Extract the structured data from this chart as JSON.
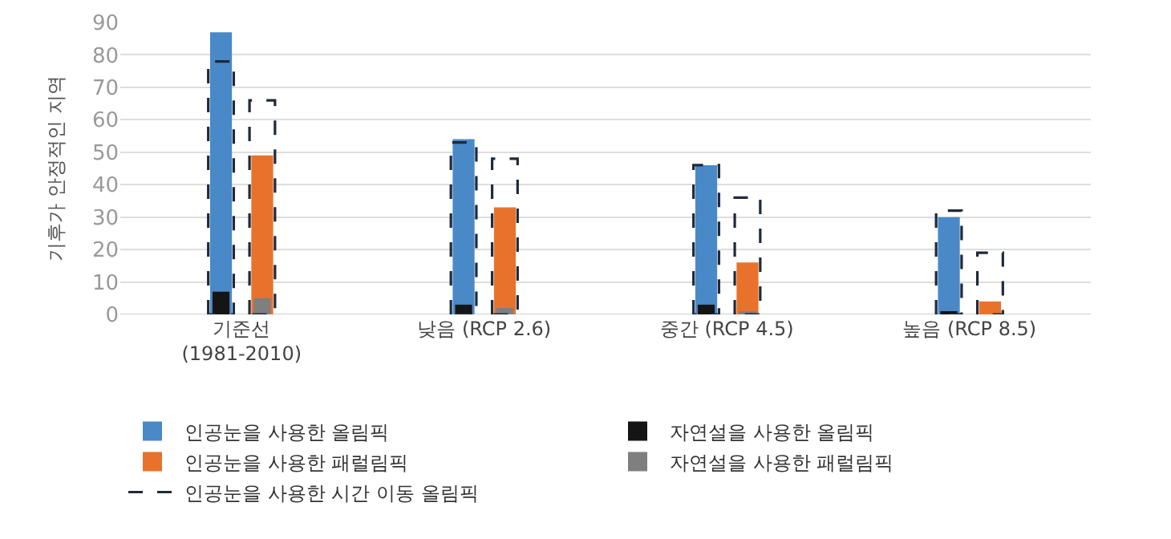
{
  "chart_data": {
    "type": "bar",
    "ylabel": "기후가 안정적인 지역",
    "categories": [
      "기준선\n(1981-2010)",
      "낮음 (RCP 2.6)",
      "중간 (RCP 4.5)",
      "높음 (RCP 8.5)"
    ],
    "series": [
      {
        "name": "인공눈을 사용한 올림픽",
        "color": "#4a89c8",
        "values": [
          87,
          54,
          46,
          30
        ]
      },
      {
        "name": "자연설을 사용한 올림픽",
        "color": "#151515",
        "values": [
          7,
          3,
          3,
          1
        ]
      },
      {
        "name": "인공눈을 사용한 패럴림픽",
        "color": "#e8722c",
        "values": [
          49,
          33,
          16,
          4
        ]
      },
      {
        "name": "자연설을 사용한 패럴림픽",
        "color": "#7f7f7f",
        "values": [
          5,
          2,
          0.5,
          null
        ]
      },
      {
        "name": "인공눈을 사용한 시간 이동 올림픽",
        "color": "#1f2a3a",
        "line_style": "dashed",
        "values": [
          78,
          53,
          46,
          32
        ]
      },
      {
        "color": "#1f2a3a",
        "line_style": "dashed",
        "values": [
          66,
          48,
          36,
          19
        ]
      }
    ],
    "ylim": [
      0,
      90
    ],
    "yticks": [
      0,
      10,
      20,
      30,
      40,
      50,
      60,
      70,
      80,
      90
    ],
    "grid": "y",
    "legend": "bottom"
  }
}
